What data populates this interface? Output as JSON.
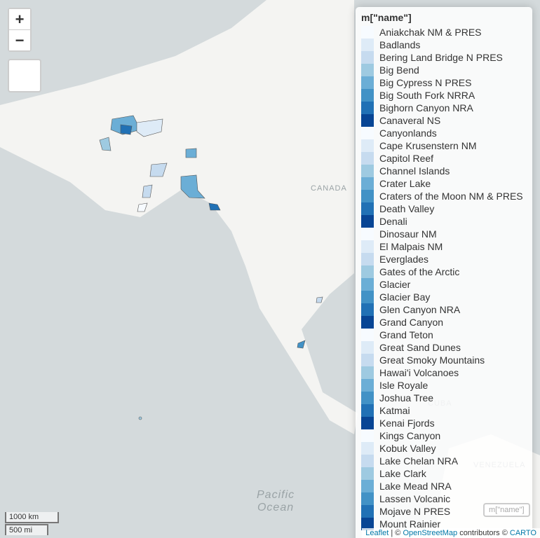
{
  "zoom": {
    "in": "+",
    "out": "−"
  },
  "map_labels": [
    {
      "text": "CANADA"
    },
    {
      "text": "Pacific\nOcean"
    },
    {
      "text": "CUBA"
    },
    {
      "text": "VENEZUELA"
    }
  ],
  "legend": {
    "title": "m[\"name\"]",
    "items": [
      {
        "label": "Aniakchak NM & PRES",
        "color": "#f7fbff"
      },
      {
        "label": "Badlands",
        "color": "#deebf7"
      },
      {
        "label": "Bering Land Bridge N PRES",
        "color": "#c6dbef"
      },
      {
        "label": "Big Bend",
        "color": "#9ecae1"
      },
      {
        "label": "Big Cypress N PRES",
        "color": "#6baed6"
      },
      {
        "label": "Big South Fork NRRA",
        "color": "#4292c6"
      },
      {
        "label": "Bighorn Canyon NRA",
        "color": "#2171b5"
      },
      {
        "label": "Canaveral NS",
        "color": "#084594"
      },
      {
        "label": "Canyonlands",
        "color": "#f7fbff"
      },
      {
        "label": "Cape Krusenstern NM",
        "color": "#deebf7"
      },
      {
        "label": "Capitol Reef",
        "color": "#c6dbef"
      },
      {
        "label": "Channel Islands",
        "color": "#9ecae1"
      },
      {
        "label": "Crater Lake",
        "color": "#6baed6"
      },
      {
        "label": "Craters of the Moon NM & PRES",
        "color": "#4292c6"
      },
      {
        "label": "Death Valley",
        "color": "#2171b5"
      },
      {
        "label": "Denali",
        "color": "#084594"
      },
      {
        "label": "Dinosaur NM",
        "color": "#f7fbff"
      },
      {
        "label": "El Malpais NM",
        "color": "#deebf7"
      },
      {
        "label": "Everglades",
        "color": "#c6dbef"
      },
      {
        "label": "Gates of the Arctic",
        "color": "#9ecae1"
      },
      {
        "label": "Glacier",
        "color": "#6baed6"
      },
      {
        "label": "Glacier Bay",
        "color": "#4292c6"
      },
      {
        "label": "Glen Canyon NRA",
        "color": "#2171b5"
      },
      {
        "label": "Grand Canyon",
        "color": "#084594"
      },
      {
        "label": "Grand Teton",
        "color": "#f7fbff"
      },
      {
        "label": "Great Sand Dunes",
        "color": "#deebf7"
      },
      {
        "label": "Great Smoky Mountains",
        "color": "#c6dbef"
      },
      {
        "label": "Hawai'i Volcanoes",
        "color": "#9ecae1"
      },
      {
        "label": "Isle Royale",
        "color": "#6baed6"
      },
      {
        "label": "Joshua Tree",
        "color": "#4292c6"
      },
      {
        "label": "Katmai",
        "color": "#2171b5"
      },
      {
        "label": "Kenai Fjords",
        "color": "#084594"
      },
      {
        "label": "Kings Canyon",
        "color": "#f7fbff"
      },
      {
        "label": "Kobuk Valley",
        "color": "#deebf7"
      },
      {
        "label": "Lake Chelan NRA",
        "color": "#c6dbef"
      },
      {
        "label": "Lake Clark",
        "color": "#9ecae1"
      },
      {
        "label": "Lake Mead NRA",
        "color": "#6baed6"
      },
      {
        "label": "Lassen Volcanic",
        "color": "#4292c6"
      },
      {
        "label": "Mojave N PRES",
        "color": "#2171b5"
      },
      {
        "label": "Mount Rainier",
        "color": "#084594"
      }
    ]
  },
  "layer_control": "m[\"name\"]",
  "scale": {
    "metric": "1000 km",
    "imperial": "500 mi"
  },
  "attribution": {
    "leaflet": "Leaflet",
    "sep": "| ©",
    "osm": "OpenStreetMap",
    "rest": "contributors ©",
    "carto": "CARTO"
  }
}
